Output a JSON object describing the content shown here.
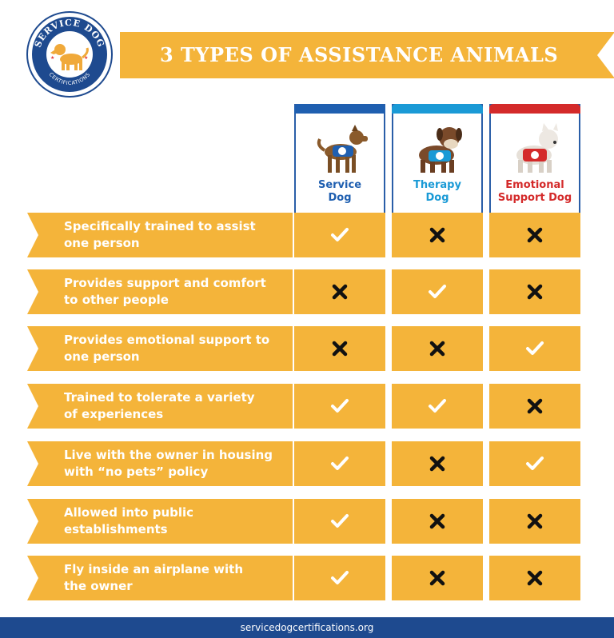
{
  "title": "3 TYPES OF ASSISTANCE ANIMALS",
  "logo": {
    "top_text": "SERVICE DOG",
    "bottom_text": "CERTIFICATIONS"
  },
  "columns": [
    {
      "line1": "Service",
      "line2": "Dog",
      "color": "#1f5fb0"
    },
    {
      "line1": "Therapy",
      "line2": "Dog",
      "color": "#1a9ad6"
    },
    {
      "line1": "Emotional",
      "line2": "Support Dog",
      "color": "#d42a2a"
    }
  ],
  "rows": [
    {
      "line1": "Specifically trained to assist",
      "line2": "one person",
      "marks": [
        "check",
        "cross",
        "cross"
      ]
    },
    {
      "line1": "Provides support and comfort",
      "line2": "to other people",
      "marks": [
        "cross",
        "check",
        "cross"
      ]
    },
    {
      "line1": "Provides emotional support to",
      "line2": "one person",
      "marks": [
        "cross",
        "cross",
        "check"
      ]
    },
    {
      "line1": "Trained to tolerate a variety",
      "line2": "of experiences",
      "marks": [
        "check",
        "check",
        "cross"
      ]
    },
    {
      "line1": "Live with the owner in housing",
      "line2": "with “no pets” policy",
      "marks": [
        "check",
        "cross",
        "check"
      ]
    },
    {
      "line1": "Allowed into public",
      "line2": "establishments",
      "marks": [
        "check",
        "cross",
        "cross"
      ]
    },
    {
      "line1": "Fly inside an airplane with",
      "line2": "the owner",
      "marks": [
        "check",
        "cross",
        "cross"
      ]
    }
  ],
  "footer": "servicedogcertifications.org",
  "colors": {
    "accent": "#f4b43a",
    "navy": "#1e4a8f"
  }
}
